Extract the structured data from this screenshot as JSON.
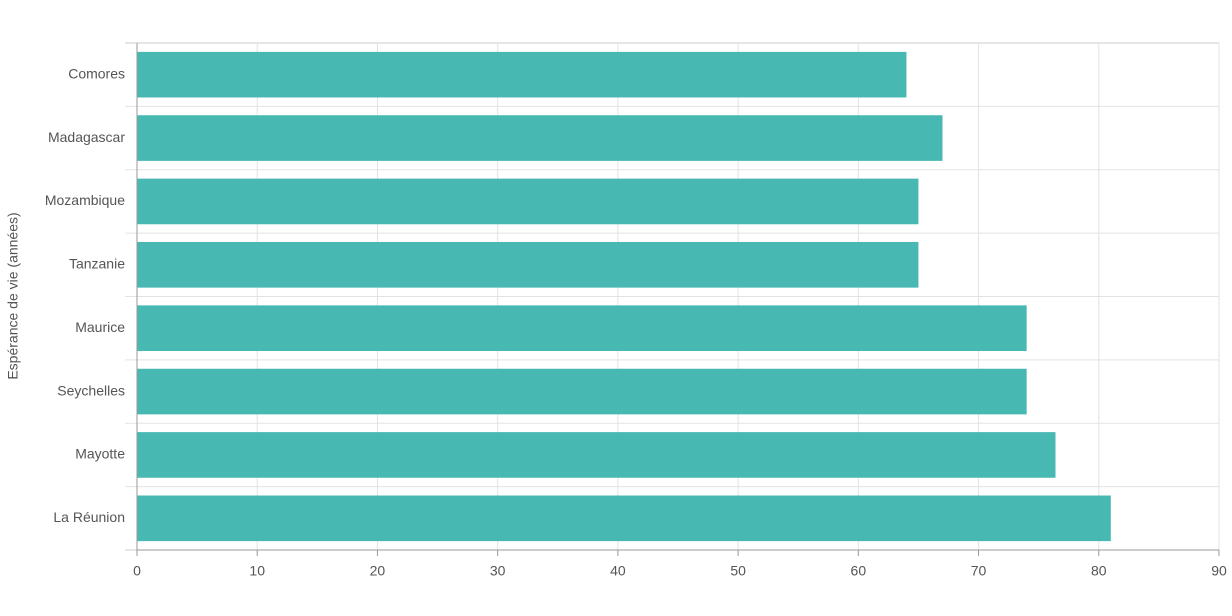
{
  "chart_data": {
    "type": "hbar",
    "y_label": "Espérance de vie (années)",
    "categories": [
      "Comores",
      "Madagascar",
      "Mozambique",
      "Tanzanie",
      "Maurice",
      "Seychelles",
      "Mayotte",
      "La Réunion"
    ],
    "values": [
      64,
      67,
      65,
      65,
      74,
      74,
      76.4,
      81
    ],
    "color": "#48b8b2",
    "xlim": [
      0,
      90
    ],
    "xticks": [
      0,
      10,
      20,
      30,
      40,
      50,
      60,
      70,
      80,
      90
    ],
    "grid": true
  }
}
